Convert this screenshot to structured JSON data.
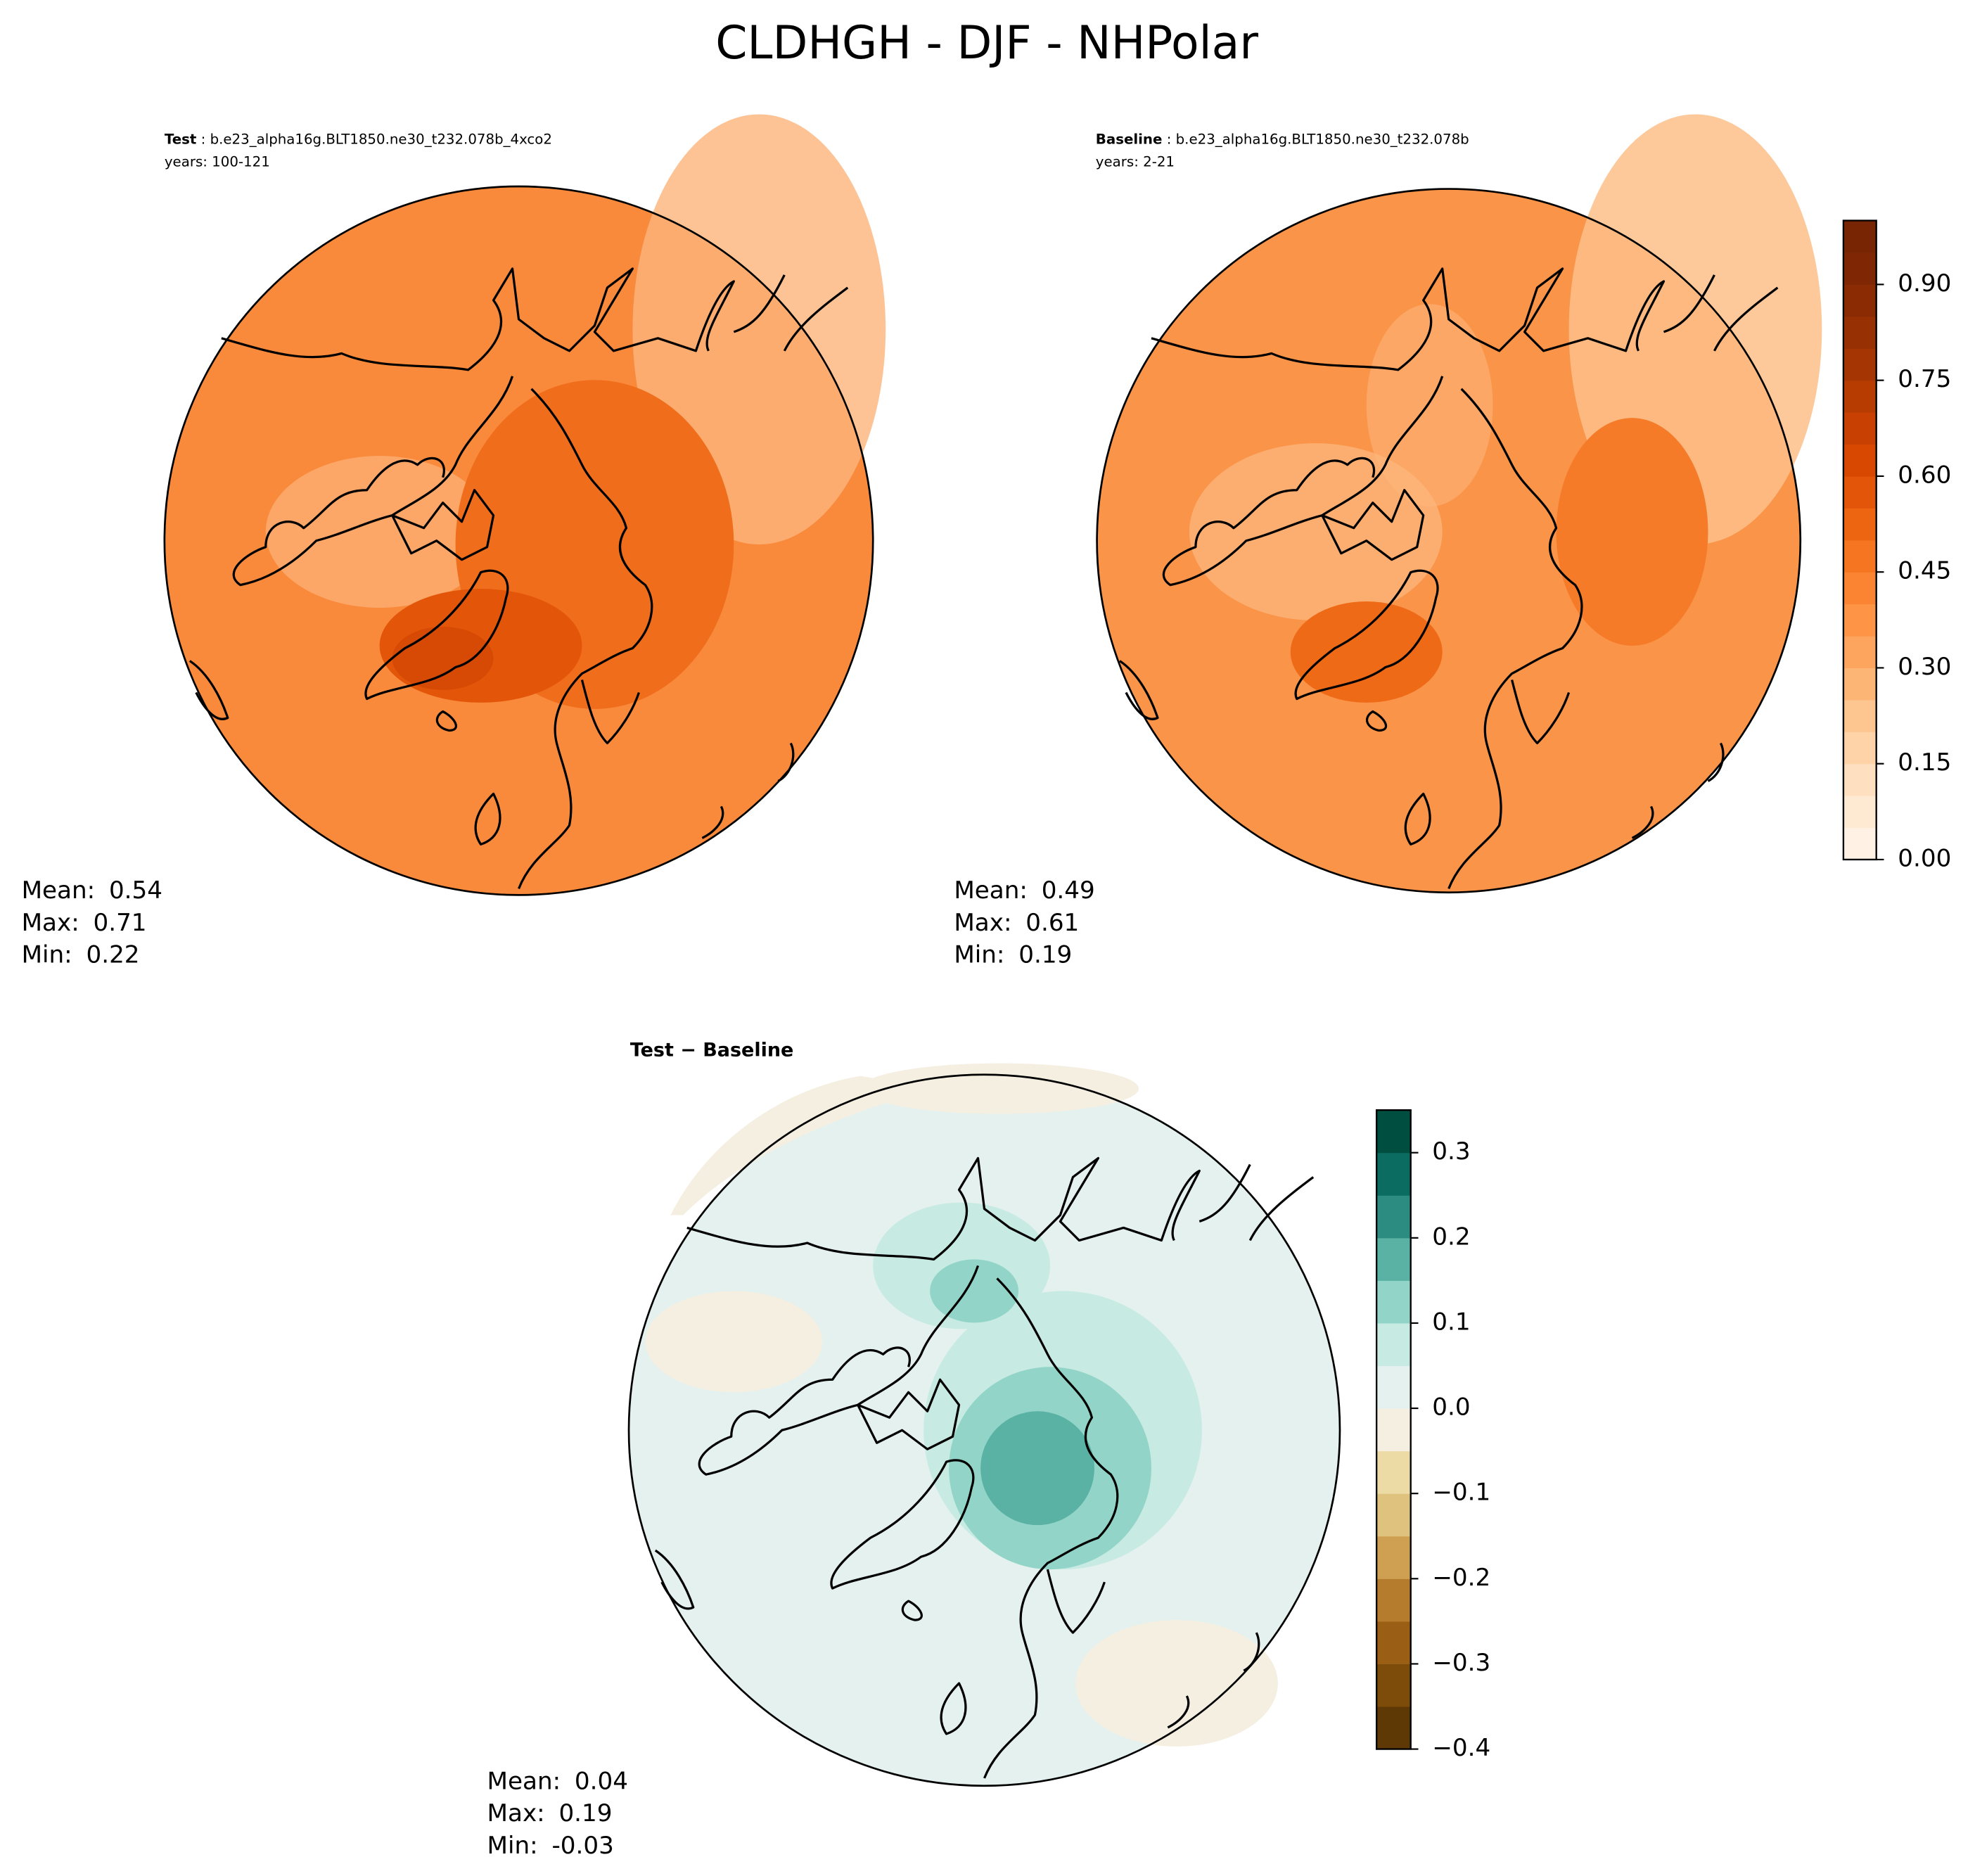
{
  "title": "CLDHGH - DJF - NHPolar",
  "chart_data": [
    {
      "type": "contour-map",
      "label": "Test",
      "subtitle": "b.e23_alpha16g.BLT1850.ne30_t232.078b_4xco2",
      "years": "years: 100-121",
      "stats": [
        {
          "label": "Mean:",
          "value": 0.54
        },
        {
          "label": "Max:",
          "value": 0.71
        },
        {
          "label": "Min:",
          "value": 0.22
        }
      ]
    },
    {
      "type": "contour-map",
      "label": "Baseline",
      "subtitle": "b.e23_alpha16g.BLT1850.ne30_t232.078b",
      "years": "years: 2-21",
      "stats": [
        {
          "label": "Mean:",
          "value": 0.49
        },
        {
          "label": "Max:",
          "value": 0.61
        },
        {
          "label": "Min:",
          "value": 0.19
        }
      ],
      "colorbar": {
        "clim": [
          0,
          1.0
        ],
        "colors": [
          "#fff1e3",
          "#fee9d3",
          "#fee0c1",
          "#fdd3a7",
          "#fdc590",
          "#fdb576",
          "#fda45e",
          "#fd9446",
          "#fa8432",
          "#f57520",
          "#ee6511",
          "#e35609",
          "#d94801",
          "#c84102",
          "#b63c02",
          "#a53603",
          "#973003",
          "#8a2b04",
          "#7f2704",
          "#782504"
        ],
        "ticks": [
          {
            "value": 0,
            "label": "0.00"
          },
          {
            "value": 0.15,
            "label": "0.15"
          },
          {
            "value": 0.3,
            "label": "0.30"
          },
          {
            "value": 0.45,
            "label": "0.45"
          },
          {
            "value": 0.6,
            "label": "0.60"
          },
          {
            "value": 0.75,
            "label": "0.75"
          },
          {
            "value": 0.9,
            "label": "0.90"
          }
        ]
      }
    },
    {
      "type": "contour-map",
      "label": "Test − Baseline",
      "stats": [
        {
          "label": "Mean:",
          "value": 0.04
        },
        {
          "label": "Max:",
          "value": 0.19
        },
        {
          "label": "Min:",
          "value": -0.03
        }
      ],
      "colorbar": {
        "clim": [
          -0.4,
          0.35
        ],
        "colors": [
          "#5e3805",
          "#7d4b0a",
          "#9a5f14",
          "#b57c2d",
          "#cfa052",
          "#dfc27d",
          "#ecdba5",
          "#f5efe2",
          "#e4f1ee",
          "#c7eae3",
          "#92d5c8",
          "#5ab2a5",
          "#2c8c82",
          "#0b6d62",
          "#004e40"
        ],
        "ticks": [
          {
            "value": -0.4,
            "label": "−0.4"
          },
          {
            "value": -0.3,
            "label": "−0.3"
          },
          {
            "value": -0.2,
            "label": "−0.2"
          },
          {
            "value": -0.1,
            "label": "−0.1"
          },
          {
            "value": 0,
            "label": "0.0"
          },
          0.1,
          0.2,
          0.3
        ]
      }
    }
  ]
}
